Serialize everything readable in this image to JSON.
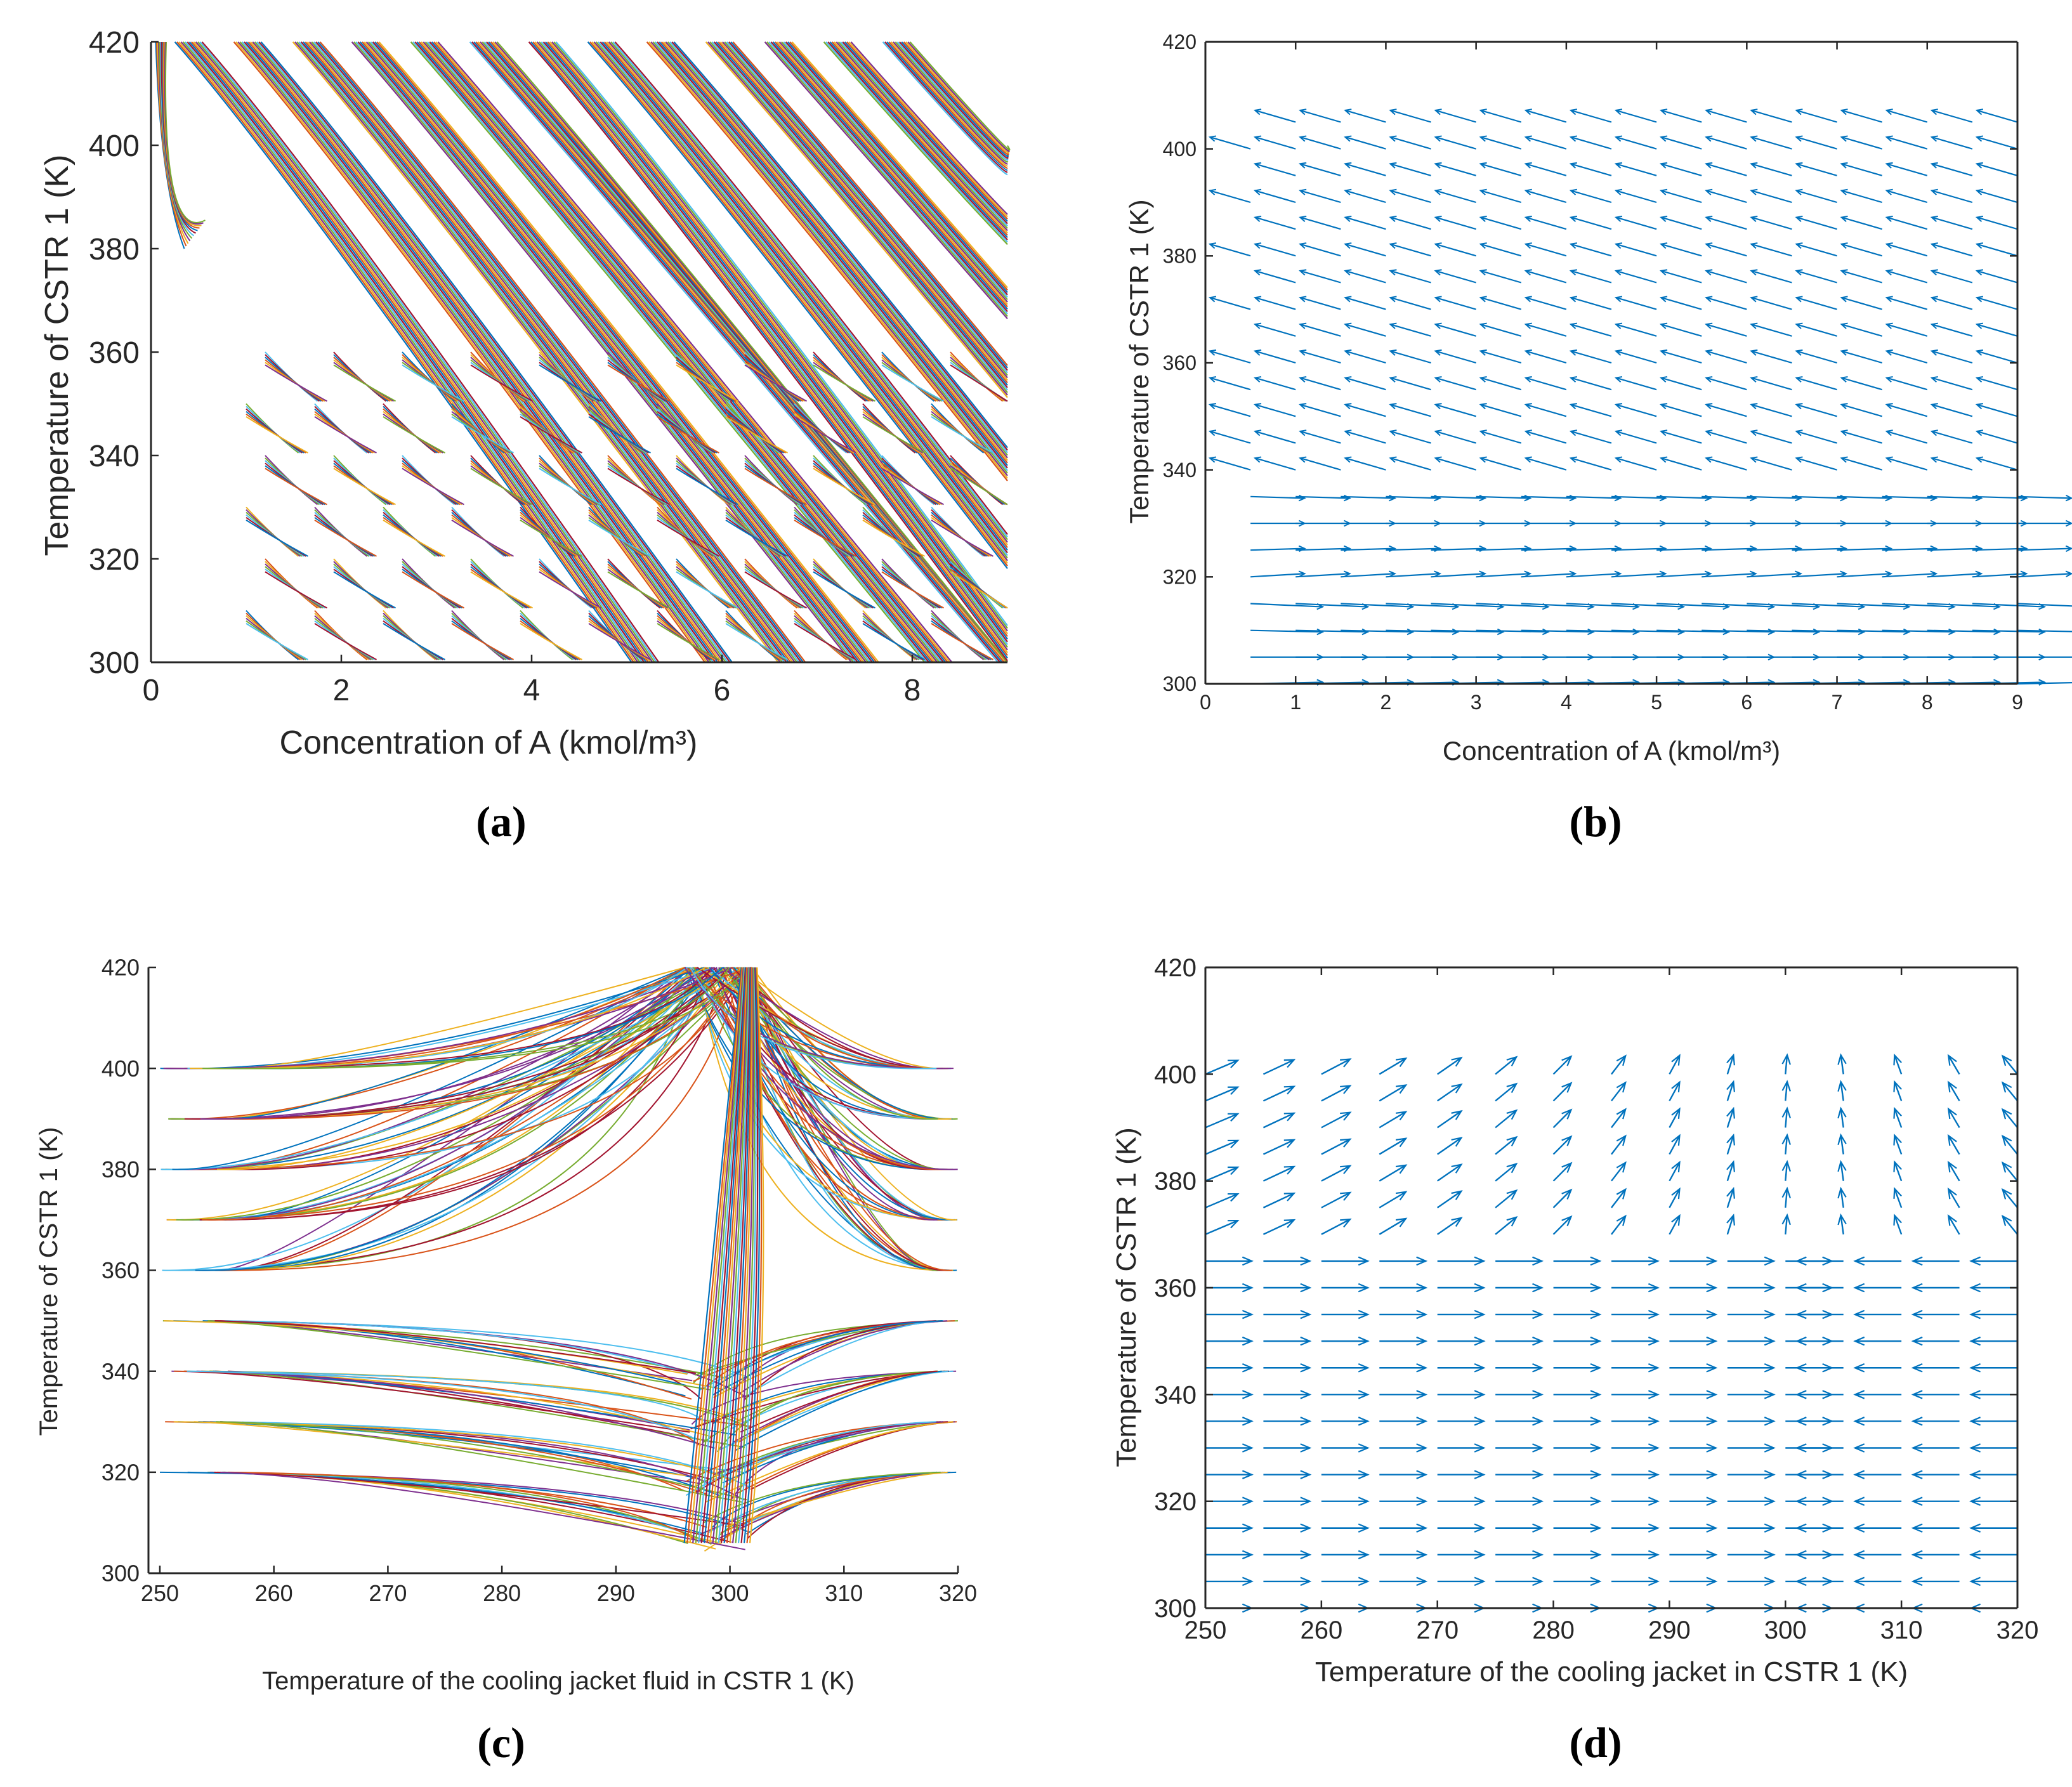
{
  "colors": {
    "axis": "#262626",
    "quiver": "#0072BD",
    "palette": [
      "#0072BD",
      "#D95319",
      "#EDB120",
      "#7E2F8E",
      "#77AC30",
      "#4DBEEE",
      "#A2142F"
    ]
  },
  "chart_data": [
    {
      "panel": "(a)",
      "type": "line",
      "description_key": "phase trajectories",
      "xlabel": "Concentration of A (kmol/m³)",
      "ylabel": "Temperature of CSTR 1 (K)",
      "xlim": [
        0,
        9
      ],
      "ylim": [
        300,
        420
      ],
      "xticks": [
        0,
        2,
        4,
        6,
        8
      ],
      "yticks": [
        300,
        320,
        340,
        360,
        380,
        400,
        420
      ],
      "tick_labels_x": [
        "0",
        "2",
        "4",
        "6",
        "8"
      ],
      "tick_labels_y": [
        "300",
        "320",
        "340",
        "360",
        "380",
        "400",
        "420"
      ],
      "series": [
        {
          "name": "trajectory",
          "x": [
            0.2,
            9.0
          ],
          "y": [
            420,
            330
          ]
        }
      ]
    },
    {
      "panel": "(b)",
      "type": "scatter",
      "description_key": "vector field",
      "xlabel": "Concentration of A (kmol/m³)",
      "ylabel": "Temperature of CSTR 1 (K)",
      "xlim": [
        0,
        9
      ],
      "ylim": [
        300,
        420
      ],
      "xticks": [
        0,
        1,
        2,
        3,
        4,
        5,
        6,
        7,
        8,
        9
      ],
      "yticks": [
        300,
        320,
        340,
        360,
        380,
        400,
        420
      ],
      "tick_labels_x": [
        "0",
        "1",
        "2",
        "3",
        "4",
        "5",
        "6",
        "7",
        "8",
        "9"
      ],
      "tick_labels_y": [
        "300",
        "320",
        "340",
        "360",
        "380",
        "400",
        "420"
      ],
      "grid_x": [
        0.5,
        9.0,
        0.5
      ],
      "grid_y": [
        300,
        405,
        5
      ]
    },
    {
      "panel": "(c)",
      "type": "line",
      "description_key": "phase trajectories",
      "xlabel": "Temperature of the cooling jacket fluid in CSTR 1 (K)",
      "ylabel": "Temperature of CSTR 1 (K)",
      "xlim": [
        249,
        320
      ],
      "ylim": [
        300,
        420
      ],
      "xticks": [
        250,
        260,
        270,
        280,
        290,
        300,
        310,
        320
      ],
      "yticks": [
        300,
        320,
        340,
        360,
        380,
        400,
        420
      ],
      "tick_labels_x": [
        "250",
        "260",
        "270",
        "280",
        "290",
        "300",
        "310",
        "320"
      ],
      "tick_labels_y": [
        "300",
        "320",
        "340",
        "360",
        "380",
        "400",
        "420"
      ],
      "start_levels": [
        320,
        330,
        340,
        350,
        360,
        370,
        380,
        390,
        400
      ],
      "attractor_x": [
        296,
        302
      ]
    },
    {
      "panel": "(d)",
      "type": "scatter",
      "description_key": "vector field",
      "xlabel": "Temperature of the cooling jacket in CSTR 1 (K)",
      "ylabel": "Temperature of CSTR 1 (K)",
      "xlim": [
        250,
        320
      ],
      "ylim": [
        300,
        420
      ],
      "xticks": [
        250,
        260,
        270,
        280,
        290,
        300,
        310,
        320
      ],
      "yticks": [
        300,
        320,
        340,
        360,
        380,
        400,
        420
      ],
      "tick_labels_x": [
        "250",
        "260",
        "270",
        "280",
        "290",
        "300",
        "310",
        "320"
      ],
      "tick_labels_y": [
        "300",
        "320",
        "340",
        "360",
        "380",
        "400",
        "420"
      ],
      "grid_x": [
        250,
        320,
        5
      ],
      "grid_y": [
        300,
        400,
        5
      ],
      "equilibrium_x": 302
    }
  ],
  "panels": {
    "a": {
      "label": "(a)"
    },
    "b": {
      "label": "(b)"
    },
    "c": {
      "label": "(c)"
    },
    "d": {
      "label": "(d)"
    }
  }
}
